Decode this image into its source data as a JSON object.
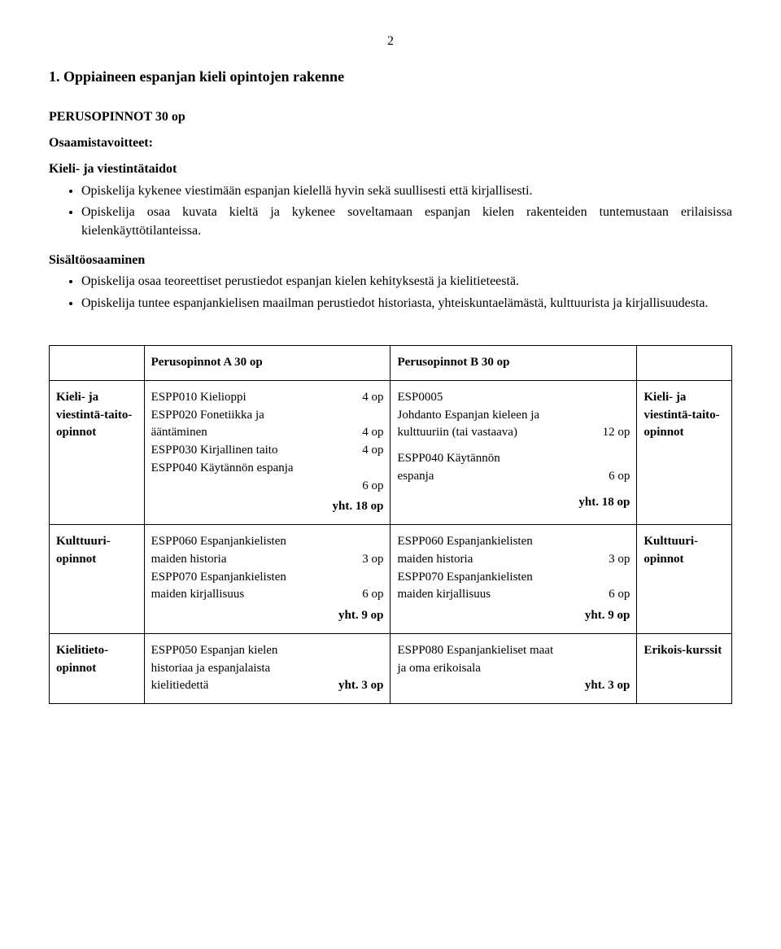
{
  "page_number": "2",
  "heading": "1. Oppiaineen espanjan kieli opintojen rakenne",
  "perus_heading": "PERUSOPINNOT  30 op",
  "osaamis_label": "Osaamistavoitteet:",
  "kieli_label": "Kieli- ja viestintätaidot",
  "bullet1": "Opiskelija kykenee viestimään espanjan kielellä hyvin sekä suullisesti että kirjallisesti.",
  "bullet2": "Opiskelija osaa kuvata kieltä ja kykenee soveltamaan espanjan kielen rakenteiden tuntemustaan erilaisissa kielenkäyttötilanteissa.",
  "sisalto_label": "Sisältöosaaminen",
  "bullet3": "Opiskelija osaa teoreettiset perustiedot espanjan kielen kehityksestä  ja kielitieteestä.",
  "bullet4": "Opiskelija tuntee espanjankielisen maailman perustiedot historiasta, yhteiskuntaelämästä, kulttuurista ja kirjallisuudesta.",
  "table": {
    "headerA": "Perusopinnot A   30 op",
    "headerB": "Perusopinnot B     30 op",
    "rowlabels": {
      "kieli": "Kieli- ja viestintä-taito-opinnot",
      "kulttuuri": "Kulttuuri-opinnot",
      "kielitieto": "Kielitieto-opinnot",
      "erikois": "Erikois-kurssit"
    },
    "A_kieli": {
      "l1a": "ESPP010 Kielioppi",
      "l1b": "4 op",
      "l2a": "ESPP020 Fonetiikka ja",
      "l3a": "ääntäminen",
      "l3b": "4 op",
      "l4a": "ESPP030 Kirjallinen taito",
      "l4b": "4 op",
      "l5a": "ESPP040 Käytännön espanja",
      "l6b": "6 op",
      "tot": "yht. 18 op"
    },
    "B_kieli": {
      "l1a": "ESP0005",
      "l2a": "Johdanto Espanjan kieleen ja",
      "l3a": "kulttuuriin (tai vastaava)",
      "l3b": "12 op",
      "l4a": "ESPP040 Käytännön",
      "l5a": "espanja",
      "l5b": "6 op",
      "tot": "yht. 18 op"
    },
    "A_kult": {
      "l1a": "ESPP060 Espanjankielisten",
      "l2a": "maiden historia",
      "l2b": "3 op",
      "l3a": "ESPP070 Espanjankielisten",
      "l4a": "maiden kirjallisuus",
      "l4b": "6 op",
      "tot": "yht. 9 op"
    },
    "B_kult": {
      "l1a": "ESPP060 Espanjankielisten",
      "l2a": "maiden historia",
      "l2b": "3 op",
      "l3a": "ESPP070 Espanjankielisten",
      "l4a": "maiden kirjallisuus",
      "l4b": "6 op",
      "tot": "yht. 9 op"
    },
    "A_kiel": {
      "l1a": "ESPP050 Espanjan kielen",
      "l2a": "historiaa ja  espanjalaista",
      "l3a": "kielitiedettä",
      "l3b": "yht. 3 op"
    },
    "B_kiel": {
      "l1a": "ESPP080 Espanjankieliset maat",
      "l2a": "ja oma erikoisala",
      "l3b": "yht. 3 op"
    }
  }
}
